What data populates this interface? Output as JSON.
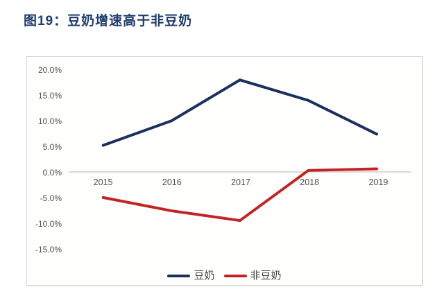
{
  "title": "图19：豆奶增速高于非豆奶",
  "colors": {
    "title": "#1e3c6e",
    "axis_text": "#4d4d4d",
    "zero_line": "#c9c9c9",
    "frame_border": "#d9d9d6"
  },
  "chart_data": {
    "type": "line",
    "title": "图19：豆奶增速高于非豆奶",
    "x": [
      "2015",
      "2016",
      "2017",
      "2018",
      "2019"
    ],
    "series": [
      {
        "name": "豆奶",
        "color": "#1c2f5e",
        "values": [
          5.2,
          10.0,
          18.0,
          14.0,
          7.4
        ]
      },
      {
        "name": "非豆奶",
        "color": "#c42323",
        "values": [
          -5.0,
          -7.6,
          -9.5,
          0.3,
          0.6
        ]
      }
    ],
    "xlabel": "",
    "ylabel": "",
    "ylim": [
      -15,
      20
    ],
    "ytick_labels": [
      "20.0%",
      "15.0%",
      "10.0%",
      "5.0%",
      "0.0%",
      "-5.0%",
      "-10.0%",
      "-15.0%"
    ],
    "grid": "zero-baseline-only",
    "legend_position": "bottom-center"
  }
}
